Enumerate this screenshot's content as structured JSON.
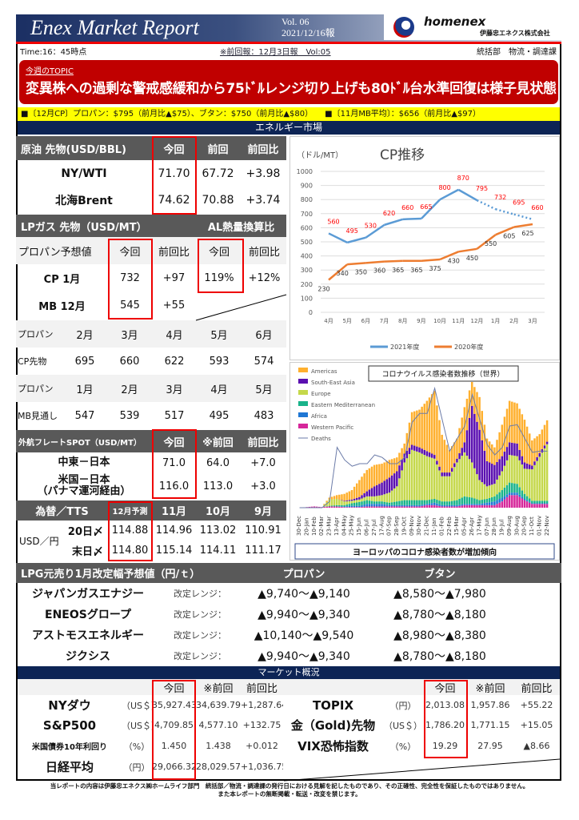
{
  "header": {
    "title": "Enex Market Report",
    "vol": "Vol. 06",
    "date": "2021/12/16報",
    "brand": "homenex",
    "company": "伊藤忠エネクス株式会社"
  },
  "info": {
    "time": "Time:16：45時点",
    "prev_report": "※前回報：12月3日報　Vol:05",
    "dept": "統括部　物流・調達課"
  },
  "topic": {
    "label": "今週のTOPIC",
    "headline": "変異株への過剰な警戒感緩和から75ﾄﾞﾙレンジ切り上げも80ﾄﾞﾙ台水準回復は様子見状態"
  },
  "ticker": {
    "cp": "■〔12月CP〕プロパン：$795（前月比▲$75）、ブタン：$750（前月比▲$80）",
    "mb": "■〔11月MB平均〕：$656（前月比▲$97）"
  },
  "energy_title": "エネルギー市場",
  "crude": {
    "header": [
      "原油 先物(USD/BBL)",
      "今回",
      "前回",
      "前回比"
    ],
    "rows": [
      [
        "NY/WTI",
        "71.70",
        "67.72",
        "+3.98"
      ],
      [
        "北海Brent",
        "74.62",
        "70.88",
        "+3.74"
      ]
    ]
  },
  "lpg": {
    "title": "LPガス 先物（USD/MT）",
    "al_title": "AL熱量換算比",
    "header": [
      "プロパン予想値",
      "今回",
      "前回比",
      "今回",
      "前回比"
    ],
    "rows": [
      [
        "CP 1月",
        "732",
        "+97",
        "119%",
        "+12%"
      ],
      [
        "MB 12月",
        "545",
        "+55",
        "",
        ""
      ]
    ]
  },
  "propane": {
    "rows": [
      [
        "プロパン",
        "2月",
        "3月",
        "4月",
        "5月",
        "6月"
      ],
      [
        "CP先物",
        "695",
        "660",
        "622",
        "593",
        "574"
      ],
      [
        "プロパン",
        "1月",
        "2月",
        "3月",
        "4月",
        "5月"
      ],
      [
        "MB見通し",
        "547",
        "539",
        "517",
        "495",
        "483"
      ]
    ]
  },
  "freight": {
    "header": [
      "外航フレートSPOT（USD/MT）",
      "今回",
      "※前回",
      "前回比"
    ],
    "rows": [
      [
        "中東－日本",
        "71.0",
        "64.0",
        "+7.0"
      ],
      [
        "米国－日本\n（パナマ運河経由）",
        "116.0",
        "113.0",
        "+3.0"
      ]
    ]
  },
  "fx": {
    "header": [
      "為替／TTS",
      "12月予測",
      "11月",
      "10月",
      "9月"
    ],
    "currency": "USD／円",
    "rows": [
      [
        "20日〆",
        "114.88",
        "114.96",
        "113.02",
        "110.91"
      ],
      [
        "末日〆",
        "114.80",
        "115.14",
        "114.11",
        "111.17"
      ]
    ]
  },
  "lpg_revision": {
    "header": [
      "LPG元売り1月改定幅予想値（円/ｔ）",
      "プロパン",
      "ブタン"
    ],
    "range_label": "改定レンジ：",
    "rows": [
      [
        "ジャパンガスエナジー",
        "▲9,740～▲9,140",
        "▲8,580～▲7,980"
      ],
      [
        "ENEOSグロープ",
        "▲9,940～▲9,340",
        "▲8,780～▲8,180"
      ],
      [
        "アストモスエネルギー",
        "▲10,140～▲9,540",
        "▲8,980～▲8,380"
      ],
      [
        "ジクシス",
        "▲9,940～▲9,340",
        "▲8,780～▲8,180"
      ]
    ]
  },
  "market": {
    "title": "マーケット概況",
    "header": [
      "今回",
      "※前回",
      "前回比"
    ],
    "left": [
      [
        "NYダウ",
        "（US＄）",
        "35,927.43",
        "34,639.79",
        "+1,287.64"
      ],
      [
        "S&P500",
        "（US＄）",
        "4,709.85",
        "4,577.10",
        "+132.75"
      ],
      [
        "米国債券10年利回り",
        "（%）",
        "1.450",
        "1.438",
        "+0.012"
      ],
      [
        "日経平均",
        "（円）",
        "29,066.32",
        "28,029.57",
        "+1,036.75"
      ]
    ],
    "right": [
      [
        "TOPIX",
        "（円）",
        "2,013.08",
        "1,957.86",
        "+55.22"
      ],
      [
        "金（Gold)先物",
        "（US＄）",
        "1,786.20",
        "1,771.15",
        "+15.05"
      ],
      [
        "VIX恐怖指数",
        "（%）",
        "19.29",
        "27.95",
        "▲8.66"
      ]
    ]
  },
  "footer": [
    "当レポートの内容は伊藤忠エネクス㈱ホームライフ部門　統括部／物流・調達課の発行日における見解を記したものであり、その正確性、完全性を保証したものではありません。",
    "また本レポートの無断掲載・転送・改変を禁じます。"
  ],
  "chart_data": [
    {
      "type": "line",
      "title": "CP推移",
      "ylabel": "（ドル/MT）",
      "ylim": [
        0,
        1000
      ],
      "yticks": [
        0,
        100,
        200,
        300,
        400,
        500,
        600,
        700,
        800,
        900,
        1000
      ],
      "grid": true,
      "legend": "bottom",
      "categories": [
        "4月",
        "5月",
        "6月",
        "7月",
        "8月",
        "9月",
        "10月",
        "11月",
        "12月",
        "1月",
        "2月",
        "3月"
      ],
      "series": [
        {
          "name": "2021年度",
          "color": "#5b9bd5",
          "values": [
            560,
            495,
            530,
            620,
            660,
            665,
            800,
            870,
            795,
            732,
            695,
            660
          ],
          "dashed_from": "12月",
          "label_color": "#ff0000"
        },
        {
          "name": "2020年度",
          "color": "#ed7d31",
          "values": [
            230,
            340,
            350,
            360,
            365,
            365,
            375,
            430,
            450,
            550,
            605,
            625
          ],
          "label_color": "#333333"
        }
      ]
    },
    {
      "type": "bar",
      "stacked": true,
      "title": "コロナウイルス感染者数推移（世界）",
      "caption": "ヨーロッパのコロナ感染者数が増加傾向",
      "legend": "top-left",
      "categories": [
        "30-Dec",
        "20-Jan",
        "10-Feb",
        "02-Mar",
        "23-Mar",
        "13-Apr",
        "04-May",
        "25-May",
        "15-Jun",
        "06-Jul",
        "27-Jul",
        "17-Aug",
        "07-Sep",
        "28-Sep",
        "19-Oct",
        "09-Nov",
        "30-Nov",
        "21-Dec",
        "11-Jan",
        "01-Feb",
        "22-Feb",
        "15-Mar",
        "05-Apr",
        "26-Apr",
        "17-May",
        "07-Jun",
        "28-Jun",
        "19-Jul",
        "09-Aug",
        "30-Aug",
        "20-Sep",
        "11-Oct",
        "01-Nov",
        "22-Nov"
      ],
      "series": [
        {
          "name": "Western Pacific",
          "color": "#d6279a",
          "values": [
            0,
            0.5,
            1,
            0.5,
            1,
            1,
            0.5,
            0.5,
            0.5,
            1,
            1,
            1,
            1,
            1,
            1,
            1,
            1,
            2,
            2,
            1,
            1,
            1,
            2,
            2,
            2,
            2,
            2,
            5,
            10,
            10,
            6,
            3,
            3,
            3
          ]
        },
        {
          "name": "Africa",
          "color": "#1f77d4",
          "values": [
            0,
            0,
            0,
            0,
            0,
            0,
            0.5,
            1,
            1,
            2,
            2,
            2,
            1,
            1,
            1,
            1,
            1,
            1,
            2,
            1,
            1,
            1,
            1,
            1,
            1,
            2,
            3,
            3,
            2,
            2,
            1,
            0.5,
            0.5,
            0.5
          ]
        },
        {
          "name": "Eastern Mediterranean",
          "color": "#19b38a",
          "values": [
            0,
            0,
            0,
            0,
            0.5,
            1,
            1,
            2,
            3,
            3,
            2,
            2,
            2,
            3,
            4,
            4,
            4,
            3,
            3,
            3,
            3,
            4,
            6,
            5,
            3,
            3,
            4,
            6,
            8,
            7,
            4,
            2,
            2,
            2
          ]
        },
        {
          "name": "Europe",
          "color": "#c5d84a",
          "values": [
            0,
            0,
            0,
            0,
            5,
            5,
            3,
            2,
            2,
            3,
            4,
            5,
            8,
            12,
            30,
            40,
            38,
            35,
            32,
            20,
            20,
            30,
            35,
            28,
            16,
            10,
            10,
            15,
            22,
            22,
            20,
            25,
            35,
            45
          ]
        },
        {
          "name": "South-East Asia",
          "color": "#5a0fb0",
          "values": [
            0,
            0,
            0,
            0,
            0,
            0,
            0.5,
            1,
            2,
            4,
            8,
            10,
            12,
            12,
            7,
            4,
            4,
            4,
            3,
            3,
            3,
            3,
            8,
            45,
            40,
            20,
            15,
            12,
            10,
            10,
            5,
            3,
            3,
            2
          ]
        },
        {
          "name": "Americas",
          "color": "#ffb02e",
          "values": [
            0,
            0,
            0,
            0,
            1.5,
            3,
            5.5,
            7.5,
            13.5,
            17,
            17,
            15,
            14,
            11,
            8,
            26,
            30,
            40,
            51,
            30,
            18,
            16,
            28,
            19,
            26,
            18,
            14,
            25,
            33,
            32,
            34,
            20,
            15,
            17
          ]
        },
        {
          "name": "Deaths",
          "type": "line",
          "color": "#6b7ba8",
          "values": [
            0,
            0,
            0,
            0,
            5,
            48,
            38,
            33,
            35,
            35,
            42,
            40,
            35,
            35,
            40,
            68,
            75,
            75,
            95,
            70,
            45,
            55,
            65,
            90,
            70,
            50,
            42,
            48,
            65,
            66,
            55,
            44,
            45,
            45
          ]
        }
      ]
    }
  ]
}
